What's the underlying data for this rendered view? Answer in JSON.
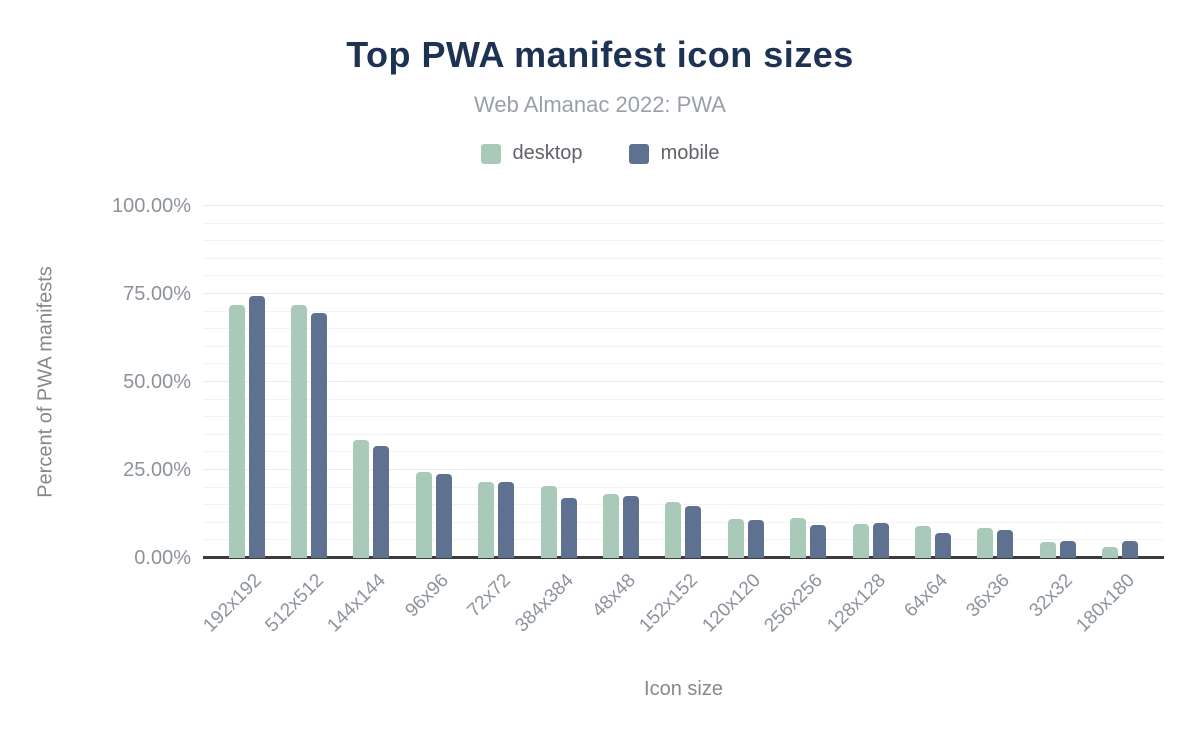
{
  "chart": {
    "title": "Top PWA manifest icon sizes",
    "subtitle": "Web Almanac 2022: PWA",
    "ylabel": "Percent of PWA manifests",
    "xlabel": "Icon size"
  },
  "chart_data": {
    "type": "bar",
    "title": "Top PWA manifest icon sizes",
    "subtitle": "Web Almanac 2022: PWA",
    "xlabel": "Icon size",
    "ylabel": "Percent of PWA manifests",
    "categories": [
      "192x192",
      "512x512",
      "144x144",
      "96x96",
      "72x72",
      "384x384",
      "48x48",
      "152x152",
      "120x120",
      "256x256",
      "128x128",
      "64x64",
      "36x36",
      "32x32",
      "180x180"
    ],
    "series": [
      {
        "name": "desktop",
        "color": "#a9cab8",
        "values": [
          72.0,
          72.0,
          33.4,
          24.5,
          21.7,
          20.4,
          18.2,
          15.9,
          11.2,
          11.3,
          9.6,
          9.1,
          8.5,
          4.5,
          3.2
        ]
      },
      {
        "name": "mobile",
        "color": "#5f7190",
        "values": [
          74.4,
          69.6,
          31.7,
          23.8,
          21.6,
          17.0,
          17.6,
          14.7,
          10.7,
          9.5,
          10.0,
          7.1,
          7.9,
          4.8,
          4.7
        ]
      }
    ],
    "ylim": [
      0,
      100
    ],
    "yticks": [
      {
        "value": 0,
        "label": "0.00%"
      },
      {
        "value": 25,
        "label": "25.00%"
      },
      {
        "value": 50,
        "label": "50.00%"
      },
      {
        "value": 75,
        "label": "75.00%"
      },
      {
        "value": 100,
        "label": "100.00%"
      }
    ],
    "grid": {
      "minor_step": 5,
      "major_step": 25,
      "on": true
    },
    "legend_position": "top"
  },
  "colors": {
    "background": "#ffffff",
    "title": "#1e3354",
    "subtitle": "#9aa0a7",
    "legend_text": "#5f6368",
    "tick_label": "#8d939b",
    "axis_title": "#85898e",
    "grid_minor": "#f3f3f3",
    "grid_major": "#ebebeb",
    "baseline": "#3b3b3d",
    "desktop": "#a9cab8",
    "mobile": "#5f7190"
  }
}
